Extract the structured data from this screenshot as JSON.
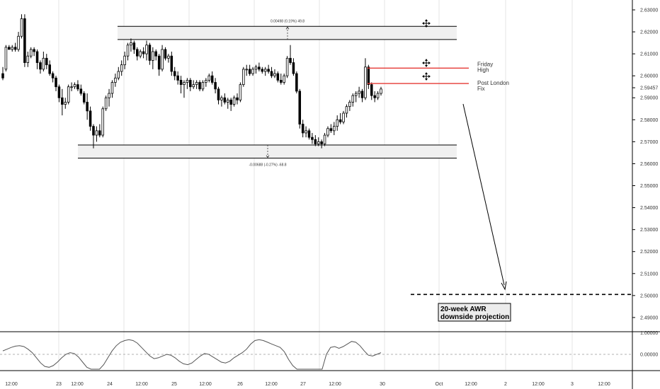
{
  "chart_data": {
    "type": "candlestick",
    "ylim": [
      2.4845,
      2.6345
    ],
    "price_ticks": [
      2.63,
      2.62,
      2.61,
      2.6,
      2.59,
      2.58,
      2.57,
      2.56,
      2.55,
      2.54,
      2.53,
      2.52,
      2.51,
      2.5,
      2.49
    ],
    "price_tick_labels": [
      "2.63000",
      "2.62000",
      "2.61000",
      "2.60000",
      "2.59000",
      "2.58000",
      "2.57000",
      "2.56000",
      "2.55000",
      "2.54000",
      "2.53000",
      "2.52000",
      "2.51000",
      "2.50000",
      "2.49000"
    ],
    "last_price_label": "2.59457",
    "x_ticks": [
      "12:00",
      "23",
      "12:00",
      "24",
      "12:00",
      "25",
      "12:00",
      "26",
      "12:00",
      "27",
      "12:00",
      "30",
      "Oct",
      "12:00",
      "2",
      "12:00",
      "3",
      "12:00"
    ],
    "candles": [
      [
        2.601,
        2.604,
        2.598,
        2.599
      ],
      [
        2.603,
        2.614,
        2.602,
        2.613
      ],
      [
        2.613,
        2.614,
        2.612,
        2.612
      ],
      [
        2.612,
        2.614,
        2.611,
        2.613
      ],
      [
        2.613,
        2.615,
        2.611,
        2.612
      ],
      [
        2.612,
        2.62,
        2.611,
        2.618
      ],
      [
        2.618,
        2.628,
        2.617,
        2.626
      ],
      [
        2.626,
        2.628,
        2.604,
        2.606
      ],
      [
        2.606,
        2.611,
        2.604,
        2.609
      ],
      [
        2.609,
        2.613,
        2.608,
        2.612
      ],
      [
        2.612,
        2.613,
        2.609,
        2.611
      ],
      [
        2.611,
        2.612,
        2.603,
        2.606
      ],
      [
        2.606,
        2.607,
        2.601,
        2.603
      ],
      [
        2.603,
        2.611,
        2.602,
        2.608
      ],
      [
        2.608,
        2.61,
        2.603,
        2.605
      ],
      [
        2.605,
        2.607,
        2.6,
        2.601
      ],
      [
        2.601,
        2.602,
        2.597,
        2.599
      ],
      [
        2.599,
        2.6,
        2.593,
        2.595
      ],
      [
        2.595,
        2.596,
        2.588,
        2.59
      ],
      [
        2.59,
        2.594,
        2.582,
        2.587
      ],
      [
        2.587,
        2.59,
        2.585,
        2.588
      ],
      [
        2.588,
        2.596,
        2.587,
        2.595
      ],
      [
        2.595,
        2.597,
        2.593,
        2.595
      ],
      [
        2.595,
        2.597,
        2.594,
        2.596
      ],
      [
        2.596,
        2.598,
        2.593,
        2.594
      ],
      [
        2.594,
        2.596,
        2.591,
        2.592
      ],
      [
        2.592,
        2.593,
        2.587,
        2.588
      ],
      [
        2.588,
        2.592,
        2.58,
        2.584
      ],
      [
        2.584,
        2.586,
        2.575,
        2.577
      ],
      [
        2.577,
        2.578,
        2.567,
        2.573
      ],
      [
        2.573,
        2.577,
        2.57,
        2.575
      ],
      [
        2.575,
        2.578,
        2.572,
        2.573
      ],
      [
        2.573,
        2.586,
        2.572,
        2.585
      ],
      [
        2.585,
        2.591,
        2.584,
        2.59
      ],
      [
        2.59,
        2.594,
        2.586,
        2.592
      ],
      [
        2.592,
        2.598,
        2.59,
        2.597
      ],
      [
        2.597,
        2.601,
        2.595,
        2.599
      ],
      [
        2.599,
        2.604,
        2.598,
        2.602
      ],
      [
        2.602,
        2.607,
        2.6,
        2.605
      ],
      [
        2.605,
        2.611,
        2.603,
        2.609
      ],
      [
        2.609,
        2.615,
        2.607,
        2.614
      ],
      [
        2.614,
        2.617,
        2.611,
        2.615
      ],
      [
        2.615,
        2.616,
        2.61,
        2.612
      ],
      [
        2.612,
        2.613,
        2.607,
        2.609
      ],
      [
        2.609,
        2.612,
        2.608,
        2.611
      ],
      [
        2.611,
        2.613,
        2.608,
        2.61
      ],
      [
        2.61,
        2.616,
        2.607,
        2.614
      ],
      [
        2.614,
        2.615,
        2.605,
        2.607
      ],
      [
        2.607,
        2.613,
        2.603,
        2.611
      ],
      [
        2.611,
        2.612,
        2.607,
        2.609
      ],
      [
        2.609,
        2.61,
        2.6,
        2.603
      ],
      [
        2.603,
        2.614,
        2.602,
        2.612
      ],
      [
        2.612,
        2.613,
        2.607,
        2.608
      ],
      [
        2.608,
        2.61,
        2.606,
        2.609
      ],
      [
        2.609,
        2.611,
        2.6,
        2.602
      ],
      [
        2.602,
        2.604,
        2.598,
        2.6
      ],
      [
        2.6,
        2.602,
        2.596,
        2.598
      ],
      [
        2.598,
        2.6,
        2.592,
        2.596
      ],
      [
        2.596,
        2.598,
        2.59,
        2.597
      ],
      [
        2.597,
        2.599,
        2.594,
        2.598
      ],
      [
        2.598,
        2.599,
        2.593,
        2.595
      ],
      [
        2.595,
        2.598,
        2.594,
        2.596
      ],
      [
        2.596,
        2.598,
        2.594,
        2.597
      ],
      [
        2.597,
        2.598,
        2.593,
        2.594
      ],
      [
        2.594,
        2.598,
        2.593,
        2.597
      ],
      [
        2.597,
        2.599,
        2.595,
        2.598
      ],
      [
        2.598,
        2.601,
        2.597,
        2.6
      ],
      [
        2.6,
        2.602,
        2.596,
        2.597
      ],
      [
        2.597,
        2.599,
        2.592,
        2.594
      ],
      [
        2.594,
        2.595,
        2.587,
        2.589
      ],
      [
        2.589,
        2.591,
        2.586,
        2.59
      ],
      [
        2.59,
        2.592,
        2.587,
        2.588
      ],
      [
        2.588,
        2.59,
        2.585,
        2.589
      ],
      [
        2.589,
        2.59,
        2.584,
        2.587
      ],
      [
        2.587,
        2.591,
        2.586,
        2.59
      ],
      [
        2.59,
        2.592,
        2.587,
        2.589
      ],
      [
        2.589,
        2.597,
        2.588,
        2.596
      ],
      [
        2.596,
        2.604,
        2.595,
        2.603
      ],
      [
        2.603,
        2.605,
        2.6,
        2.603
      ],
      [
        2.603,
        2.605,
        2.6,
        2.601
      ],
      [
        2.601,
        2.604,
        2.6,
        2.603
      ],
      [
        2.603,
        2.605,
        2.601,
        2.604
      ],
      [
        2.604,
        2.606,
        2.602,
        2.603
      ],
      [
        2.603,
        2.604,
        2.601,
        2.602
      ],
      [
        2.602,
        2.604,
        2.6,
        2.603
      ],
      [
        2.603,
        2.605,
        2.601,
        2.602
      ],
      [
        2.602,
        2.604,
        2.599,
        2.6
      ],
      [
        2.6,
        2.603,
        2.599,
        2.601
      ],
      [
        2.601,
        2.602,
        2.597,
        2.598
      ],
      [
        2.598,
        2.601,
        2.596,
        2.597
      ],
      [
        2.597,
        2.601,
        2.596,
        2.6
      ],
      [
        2.6,
        2.609,
        2.599,
        2.608
      ],
      [
        2.608,
        2.614,
        2.605,
        2.606
      ],
      [
        2.606,
        2.608,
        2.6,
        2.601
      ],
      [
        2.601,
        2.602,
        2.592,
        2.593
      ],
      [
        2.593,
        2.594,
        2.576,
        2.578
      ],
      [
        2.578,
        2.58,
        2.572,
        2.574
      ],
      [
        2.574,
        2.577,
        2.572,
        2.575
      ],
      [
        2.575,
        2.576,
        2.571,
        2.572
      ],
      [
        2.572,
        2.574,
        2.569,
        2.571
      ],
      [
        2.571,
        2.573,
        2.568,
        2.569
      ],
      [
        2.569,
        2.572,
        2.568,
        2.57
      ],
      [
        2.57,
        2.571,
        2.567,
        2.569
      ],
      [
        2.569,
        2.574,
        2.568,
        2.573
      ],
      [
        2.573,
        2.577,
        2.572,
        2.576
      ],
      [
        2.576,
        2.578,
        2.574,
        2.575
      ],
      [
        2.575,
        2.579,
        2.573,
        2.577
      ],
      [
        2.577,
        2.582,
        2.575,
        2.58
      ],
      [
        2.58,
        2.583,
        2.578,
        2.579
      ],
      [
        2.579,
        2.584,
        2.578,
        2.583
      ],
      [
        2.583,
        2.587,
        2.581,
        2.586
      ],
      [
        2.586,
        2.589,
        2.584,
        2.588
      ],
      [
        2.588,
        2.592,
        2.586,
        2.591
      ],
      [
        2.591,
        2.593,
        2.588,
        2.592
      ],
      [
        2.592,
        2.595,
        2.59,
        2.593
      ],
      [
        2.593,
        2.594,
        2.588,
        2.59
      ],
      [
        2.59,
        2.608,
        2.589,
        2.604
      ],
      [
        2.604,
        2.605,
        2.594,
        2.596
      ],
      [
        2.596,
        2.597,
        2.589,
        2.591
      ],
      [
        2.591,
        2.593,
        2.588,
        2.59
      ],
      [
        2.59,
        2.593,
        2.589,
        2.592
      ],
      [
        2.592,
        2.595,
        2.591,
        2.594
      ]
    ],
    "zones": [
      {
        "name": "upper-range-zone",
        "top": 2.6225,
        "bottom": 2.6165,
        "label": "0.00498 (0.19%) 49.8"
      },
      {
        "name": "lower-range-zone",
        "top": 2.5685,
        "bottom": 2.5625,
        "label": "-0.00688 (-0.27%) -68.8"
      }
    ],
    "levels": [
      {
        "name": "friday-high",
        "price": 2.6035,
        "label_line1": "Friday",
        "label_line2": "High",
        "color": "#e53935"
      },
      {
        "name": "post-london-fix",
        "price": 2.5965,
        "label_line1": "Post London",
        "label_line2": "Fix",
        "color": "#e53935"
      }
    ],
    "projection": {
      "price": 2.5005,
      "label_line1": "20-week AWR",
      "label_line2": "downside projection"
    },
    "oscillator": {
      "ticks": [
        "1.00000",
        "0.00000"
      ],
      "values": [
        0.4,
        0.6,
        0.8,
        0.95,
        1.0,
        0.9,
        0.6,
        0.2,
        -0.4,
        -1.0,
        -1.4,
        -1.5,
        -1.3,
        -0.9,
        -0.4,
        0.0,
        0.2,
        0.1,
        -0.3,
        -0.9,
        -1.5,
        -1.9,
        -2.0,
        -1.8,
        -1.2,
        -0.4,
        0.4,
        1.0,
        1.4,
        1.6,
        1.7,
        1.6,
        1.3,
        0.8,
        0.3,
        -0.2,
        -0.5,
        -0.4,
        -0.2,
        0.0,
        -0.1,
        -0.4,
        -0.8,
        -1.1,
        -1.2,
        -1.0,
        -0.6,
        -0.2,
        0.1,
        0.0,
        -0.3,
        -0.6,
        -0.9,
        -1.0,
        -0.8,
        -0.4,
        -0.1,
        0.2,
        0.6,
        1.2,
        1.6,
        1.7,
        1.6,
        1.4,
        1.2,
        1.0,
        0.8,
        0.3,
        -0.6,
        -1.3,
        -1.8,
        -2.0,
        -2.1,
        -2.1,
        -2.0,
        -1.9,
        -1.8,
        0.0,
        0.8,
        0.9,
        0.7,
        0.9,
        1.2,
        1.5,
        1.4,
        1.0,
        0.4,
        -0.1,
        -0.2,
        0.0,
        0.2
      ],
      "zero_line": 0
    }
  },
  "colors": {
    "up": "#ffffff",
    "down": "#000000",
    "wick": "#000000",
    "level": "#e53935",
    "zone_fill": "#f0f0f0",
    "grid": "#e6e6e6",
    "axis_text": "#333333"
  },
  "icons": [
    "move-handle-icon",
    "move-handle-icon",
    "move-handle-icon"
  ]
}
